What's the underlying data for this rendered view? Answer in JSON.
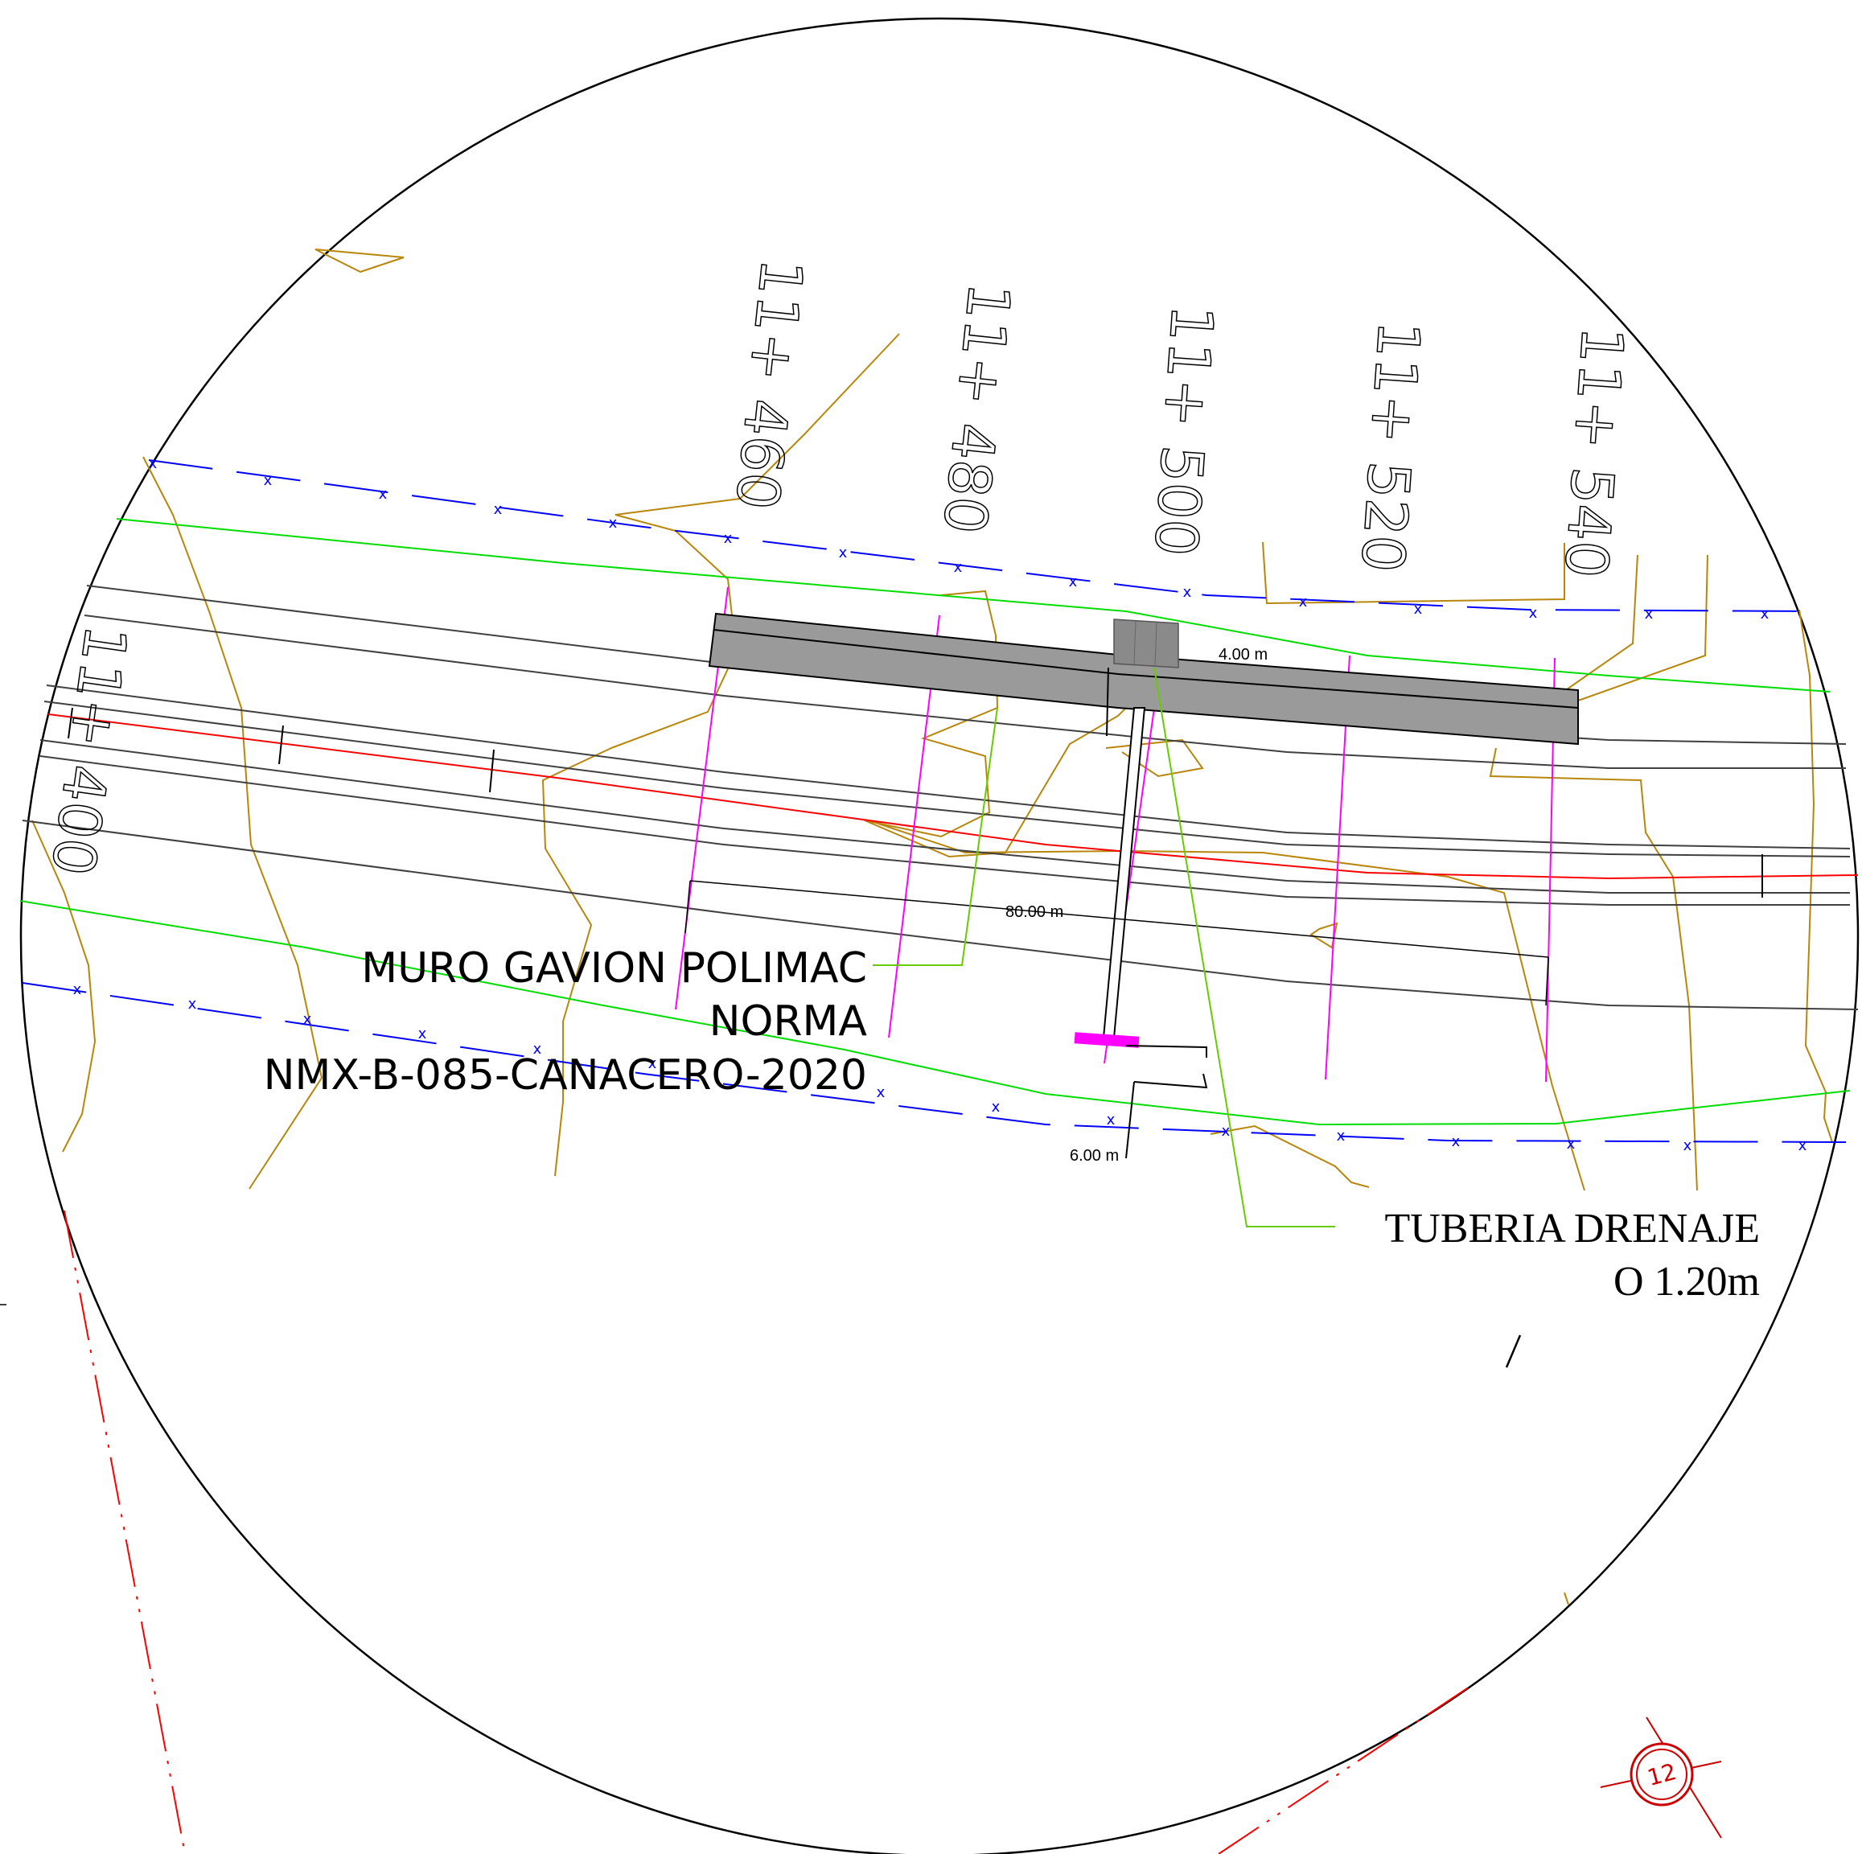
{
  "stations": [
    {
      "id": "11400",
      "label": "11+ 400"
    },
    {
      "id": "11460",
      "label": "11+ 460"
    },
    {
      "id": "11480",
      "label": "11+ 480"
    },
    {
      "id": "11500",
      "label": "11+ 500"
    },
    {
      "id": "11520",
      "label": "11+ 520"
    },
    {
      "id": "11540",
      "label": "11+ 540"
    }
  ],
  "callouts": {
    "wall": [
      "MURO GAVION POLIMAC",
      "NORMA",
      "NMX-B-085-CANACERO-2020"
    ],
    "pipe": [
      "TUBERIA DRENAJE",
      "O 1.20m"
    ]
  },
  "dimensions": {
    "width": "4.00 m",
    "length": "80.00 m",
    "offset": "6.00 m"
  },
  "marker": {
    "label": "12"
  },
  "colors": {
    "outline": "#000000",
    "road": "#404040",
    "centerline": "#ff0000",
    "fence": "#0000ff",
    "right_of_way": "#00dd00",
    "terrain": "#b8860b",
    "station_line": "#ff00ff",
    "leader": "#66cc00",
    "structure": "#888888"
  }
}
